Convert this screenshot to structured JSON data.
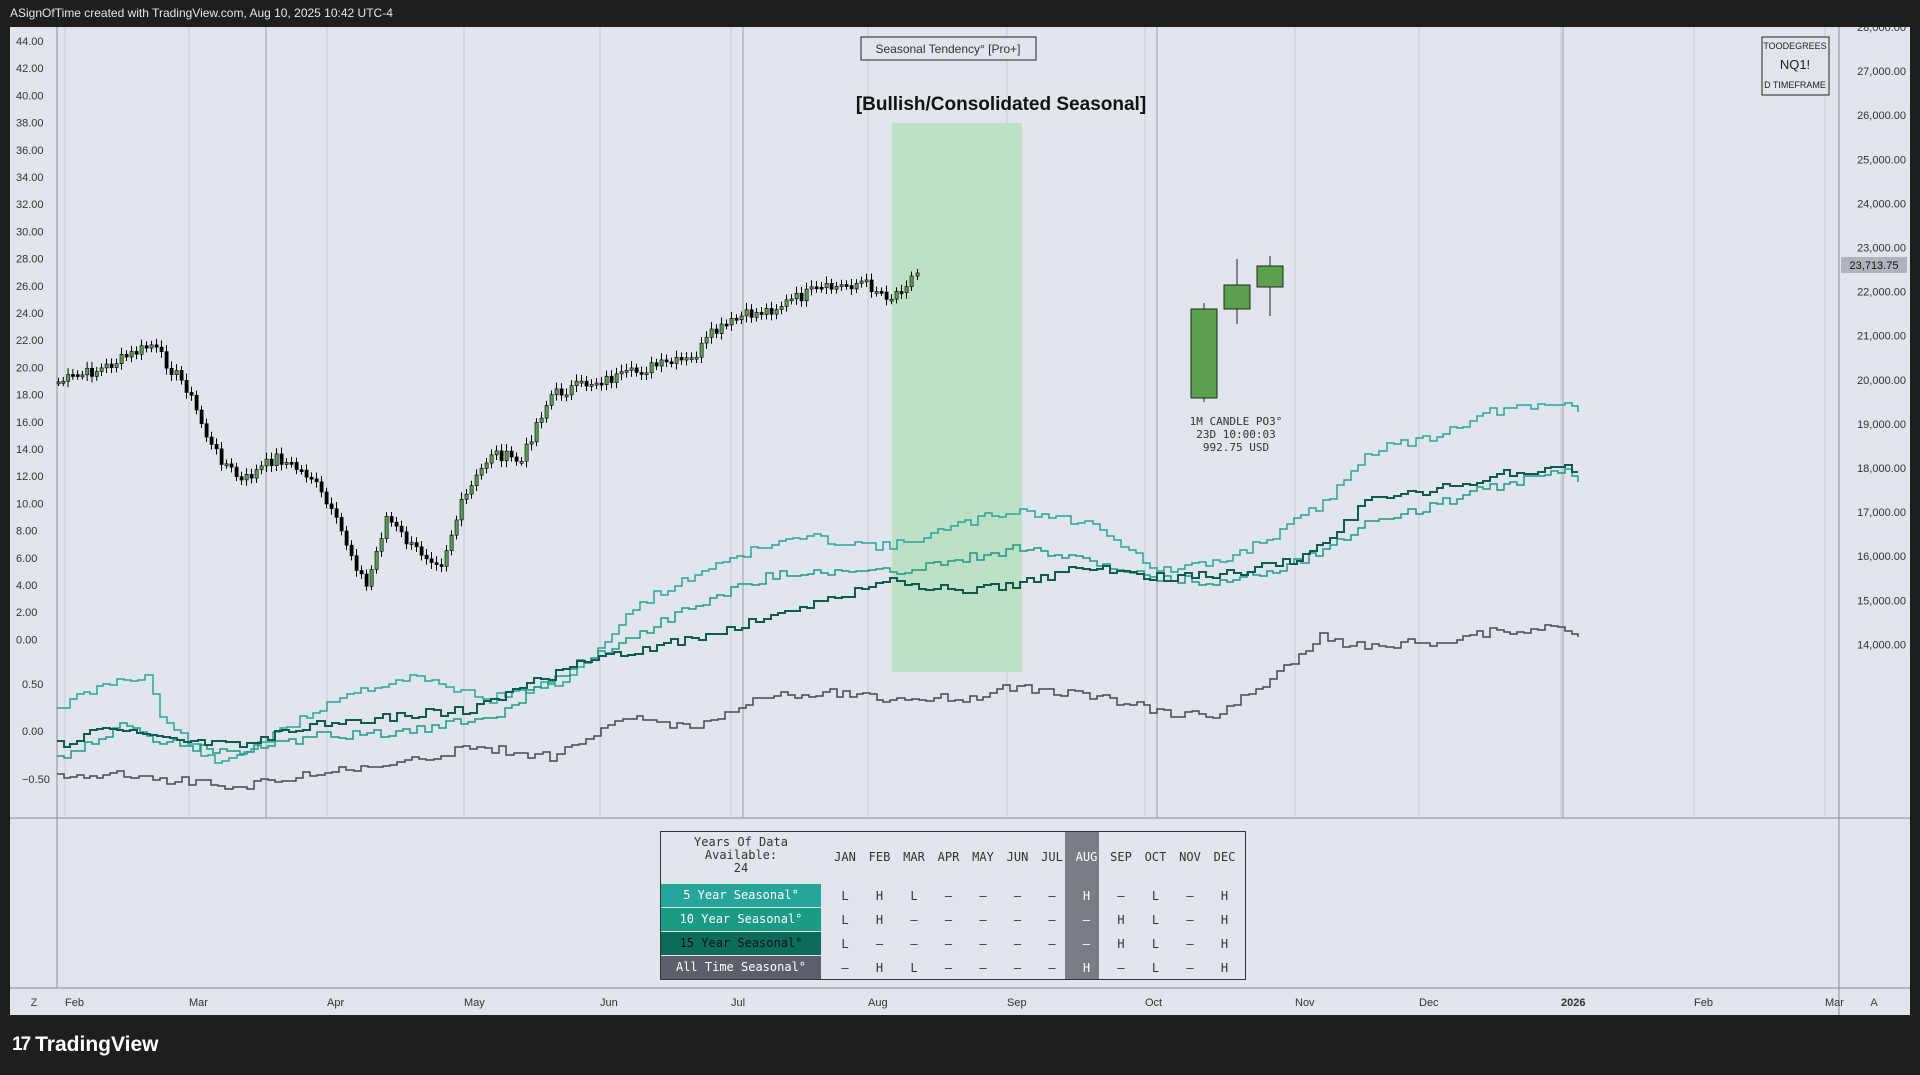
{
  "header": {
    "attribution": "ASignOfTime created with TradingView.com, Aug 10, 2025 10:42 UTC-4"
  },
  "indicator": {
    "name": "Seasonal Tendency° [Pro+]",
    "zone_label": "[Bullish/Consolidated Seasonal]",
    "candle_note": [
      "1M CANDLE PO3°",
      "23D 10:00:03",
      "992.75 USD"
    ]
  },
  "watermark": {
    "line1": "TOODEGREES",
    "line2": "NQ1!",
    "line3": "D TIMEFRAME"
  },
  "axes": {
    "left_ticks": [
      "44.00",
      "42.00",
      "40.00",
      "38.00",
      "36.00",
      "34.00",
      "32.00",
      "30.00",
      "28.00",
      "26.00",
      "24.00",
      "22.00",
      "20.00",
      "18.00",
      "16.00",
      "14.00",
      "12.00",
      "10.00",
      "8.00",
      "6.00",
      "4.00",
      "2.00",
      "0.00"
    ],
    "right_ticks": [
      "28,000.00",
      "27,000.00",
      "26,000.00",
      "25,000.00",
      "24,000.00",
      "23,000.00",
      "22,000.00",
      "21,000.00",
      "20,000.00",
      "19,000.00",
      "18,000.00",
      "17,000.00",
      "16,000.00",
      "15,000.00",
      "14,000.00"
    ],
    "last_price": "23,713.75",
    "lower_ticks": [
      "0.50",
      "0.00",
      "−0.50"
    ],
    "x_ticks": [
      "Feb",
      "Mar",
      "Apr",
      "May",
      "Jun",
      "Jul",
      "Aug",
      "Sep",
      "Oct",
      "Nov",
      "Dec",
      "2026",
      "Feb",
      "Mar"
    ],
    "corner_left": "Z",
    "corner_right": "A"
  },
  "seasonal_table": {
    "years_label": "Years Of Data Available:",
    "years_value": "24",
    "months": [
      "JAN",
      "FEB",
      "MAR",
      "APR",
      "MAY",
      "JUN",
      "JUL",
      "AUG",
      "SEP",
      "OCT",
      "NOV",
      "DEC"
    ],
    "highlight_month": "AUG",
    "rows": [
      {
        "label": "5 Year Seasonal°",
        "color": "#26a69a",
        "cells": [
          "L",
          "H",
          "L",
          "–",
          "–",
          "–",
          "–",
          "H",
          "–",
          "L",
          "–",
          "H"
        ]
      },
      {
        "label": "10 Year Seasonal°",
        "color": "#1a9c84",
        "cells": [
          "L",
          "H",
          "–",
          "–",
          "–",
          "–",
          "–",
          "–",
          "H",
          "L",
          "–",
          "H"
        ]
      },
      {
        "label": "15 Year Seasonal°",
        "color": "#0d6b5a",
        "cells": [
          "L",
          "–",
          "–",
          "–",
          "–",
          "–",
          "–",
          "–",
          "H",
          "L",
          "–",
          "H"
        ]
      },
      {
        "label": "All Time Seasonal°",
        "color": "#5d606b",
        "cells": [
          "–",
          "H",
          "L",
          "–",
          "–",
          "–",
          "–",
          "H",
          "–",
          "L",
          "–",
          "H"
        ]
      }
    ]
  },
  "colors": {
    "up": "#5aa04f",
    "down": "#000000",
    "teal1": "#26a69a",
    "teal2": "#1a9c84",
    "teal3": "#0d5c4f",
    "gray": "#454852",
    "zone": "#b7dfbf"
  },
  "brand": {
    "name": "TradingView"
  }
}
